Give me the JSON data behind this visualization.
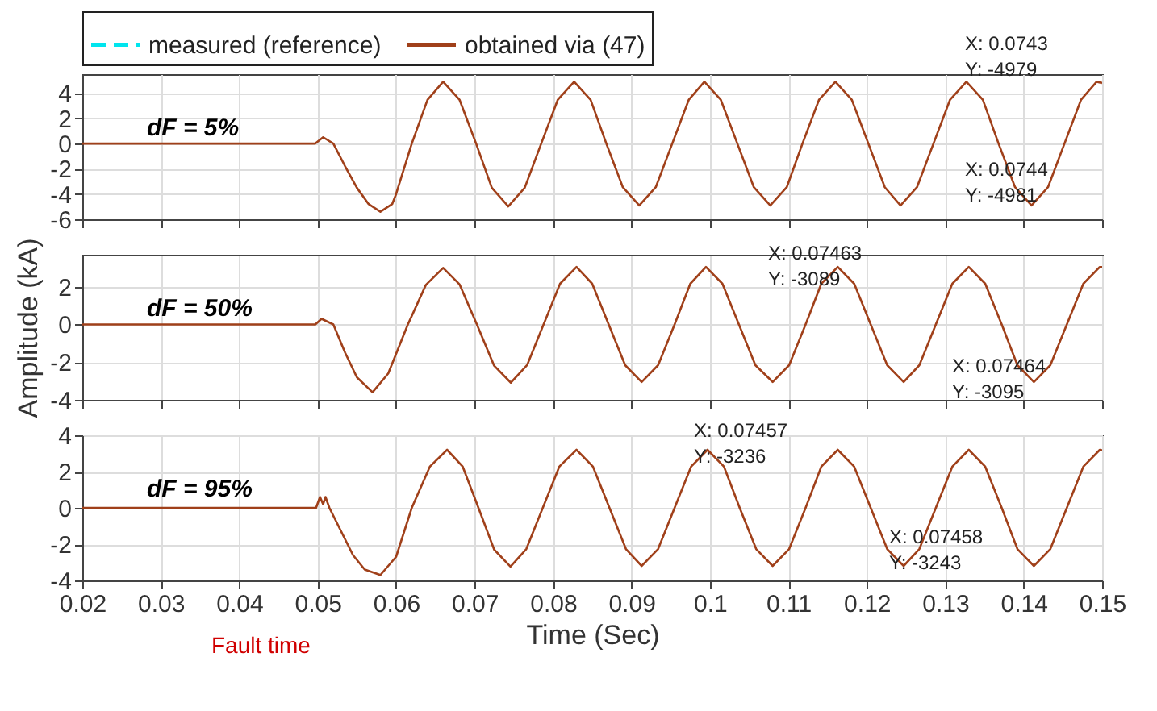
{
  "chart_data": [
    {
      "type": "line",
      "xlim": [
        0.02,
        0.15
      ],
      "xticks": [
        0.02,
        0.03,
        0.04,
        0.05,
        0.06,
        0.07,
        0.08,
        0.09,
        0.1,
        0.11,
        0.12,
        0.13,
        0.14,
        0.15
      ],
      "ylim": [
        -6,
        5.5
      ],
      "yticks": [
        -6,
        -4,
        -2,
        0,
        2,
        4
      ],
      "grid": true,
      "legend": "top",
      "tick_labels": "y",
      "series": [
        {
          "name": "measured (reference)",
          "color": "#00e5ee",
          "line_style": "dashed"
        },
        {
          "name": "obtained via (47)",
          "color": "#a0401a",
          "line_style": "solid",
          "x": [
            0.02,
            0.0497,
            0.0507,
            0.052,
            0.0535,
            0.055,
            0.0565,
            0.058,
            0.0595,
            0.06,
            0.062,
            0.064,
            0.066,
            0.0681,
            0.0702,
            0.0722,
            0.0743,
            0.0764,
            0.0785,
            0.0806,
            0.0827,
            0.0848,
            0.0868,
            0.0889,
            0.091,
            0.0931,
            0.0952,
            0.0973,
            0.0993,
            0.1014,
            0.1035,
            0.1056,
            0.1077,
            0.1098,
            0.1118,
            0.1139,
            0.116,
            0.1181,
            0.1202,
            0.1223,
            0.1243,
            0.1264,
            0.1285,
            0.1306,
            0.1327,
            0.1348,
            0.1368,
            0.1389,
            0.141,
            0.1431,
            0.1452,
            0.1473,
            0.1493,
            0.15
          ],
          "values": [
            0,
            0,
            0.5,
            0,
            -1.8,
            -3.5,
            -4.8,
            -5.4,
            -4.8,
            -4,
            0,
            3.46,
            4.9,
            3.46,
            0,
            -3.5,
            -4.98,
            -3.5,
            0,
            3.46,
            4.9,
            3.46,
            0,
            -3.46,
            -4.9,
            -3.46,
            0,
            3.46,
            4.9,
            3.46,
            0,
            -3.46,
            -4.9,
            -3.46,
            0,
            3.46,
            4.9,
            3.46,
            0,
            -3.46,
            -4.9,
            -3.46,
            0,
            3.46,
            4.9,
            3.46,
            0,
            -3.46,
            -4.9,
            -3.46,
            0,
            3.46,
            4.9,
            4.8
          ]
        }
      ],
      "annotations": [
        "dF = 5%",
        "X: 0.0743\nY: -4979",
        "X: 0.0744\nY: -4981"
      ]
    },
    {
      "type": "line",
      "xlim": [
        0.02,
        0.15
      ],
      "xticks": [
        0.02,
        0.03,
        0.04,
        0.05,
        0.06,
        0.07,
        0.08,
        0.09,
        0.1,
        0.11,
        0.12,
        0.13,
        0.14,
        0.15
      ],
      "ylim": [
        -4,
        3.7
      ],
      "yticks": [
        -4,
        -2,
        0,
        2
      ],
      "grid": true,
      "tick_labels": "y",
      "ylabel": "Amplitude (kA)",
      "series": [
        {
          "color": "#a0401a",
          "line_style": "solid",
          "x": [
            0.02,
            0.0497,
            0.0505,
            0.052,
            0.0535,
            0.055,
            0.057,
            0.059,
            0.0615,
            0.0638,
            0.066,
            0.0681,
            0.0703,
            0.0725,
            0.07463,
            0.0767,
            0.0788,
            0.0809,
            0.083,
            0.085,
            0.0871,
            0.0892,
            0.0913,
            0.0934,
            0.0955,
            0.0975,
            0.0995,
            0.1016,
            0.1037,
            0.1058,
            0.108,
            0.1101,
            0.1122,
            0.1142,
            0.1163,
            0.1184,
            0.1205,
            0.1226,
            0.1247,
            0.1267,
            0.1288,
            0.1309,
            0.133,
            0.1351,
            0.1372,
            0.1392,
            0.1413,
            0.1434,
            0.1455,
            0.1476,
            0.1497,
            0.15
          ],
          "values": [
            0,
            0,
            0.3,
            0,
            -1.5,
            -2.8,
            -3.6,
            -2.6,
            0,
            2.1,
            3,
            2.12,
            0,
            -2.19,
            -3.09,
            -2.16,
            0,
            2.16,
            3.05,
            2.16,
            0,
            -2.16,
            -3.05,
            -2.16,
            0,
            2.16,
            3.05,
            2.16,
            0,
            -2.16,
            -3.05,
            -2.16,
            0,
            2.16,
            3.05,
            2.16,
            0,
            -2.16,
            -3.05,
            -2.16,
            0,
            2.16,
            3.05,
            2.16,
            0,
            -2.16,
            -3.05,
            -2.16,
            0,
            2.16,
            3.05,
            3.04
          ]
        }
      ],
      "annotations": [
        "dF = 50%",
        "X: 0.07463\nY: -3089",
        "X: 0.07464\nY: -3095"
      ]
    },
    {
      "type": "line",
      "xlim": [
        0.02,
        0.15
      ],
      "xticks": [
        0.02,
        0.03,
        0.04,
        0.05,
        0.06,
        0.07,
        0.08,
        0.09,
        0.1,
        0.11,
        0.12,
        0.13,
        0.14,
        0.15
      ],
      "ylim": [
        -4,
        4
      ],
      "yticks": [
        -4,
        -2,
        0,
        2,
        4
      ],
      "grid": true,
      "xlabel": "Time (Sec)",
      "series": [
        {
          "color": "#a0401a",
          "line_style": "solid",
          "x": [
            0.02,
            0.0498,
            0.0503,
            0.0507,
            0.051,
            0.0515,
            0.053,
            0.0545,
            0.056,
            0.058,
            0.06,
            0.062,
            0.0643,
            0.0665,
            0.0685,
            0.0705,
            0.0725,
            0.07458,
            0.0766,
            0.0787,
            0.0808,
            0.083,
            0.0851,
            0.0872,
            0.0893,
            0.0913,
            0.0934,
            0.0955,
            0.0976,
            0.0997,
            0.1018,
            0.1038,
            0.1059,
            0.108,
            0.1101,
            0.1122,
            0.1142,
            0.1163,
            0.1184,
            0.1205,
            0.1226,
            0.1247,
            0.1267,
            0.1288,
            0.1309,
            0.133,
            0.1351,
            0.1372,
            0.1392,
            0.1413,
            0.1434,
            0.1455,
            0.1476,
            0.1497,
            0.15
          ],
          "values": [
            0,
            0,
            0.6,
            0.2,
            0.6,
            0,
            -1.3,
            -2.6,
            -3.4,
            -3.7,
            -2.7,
            0,
            2.27,
            3.2,
            2.27,
            0,
            -2.3,
            -3.24,
            -2.27,
            0,
            2.27,
            3.2,
            2.27,
            0,
            -2.27,
            -3.2,
            -2.27,
            0,
            2.27,
            3.2,
            2.27,
            0,
            -2.27,
            -3.2,
            -2.27,
            0,
            2.27,
            3.2,
            2.27,
            0,
            -2.27,
            -3.2,
            -2.27,
            0,
            2.27,
            3.2,
            2.27,
            0,
            -2.27,
            -3.2,
            -2.27,
            0,
            2.27,
            3.2,
            3.18
          ]
        }
      ],
      "annotations": [
        "dF = 95%",
        "X: 0.07457\nY: -3236",
        "X: 0.07458\nY: -3243",
        "Fault time"
      ]
    }
  ]
}
